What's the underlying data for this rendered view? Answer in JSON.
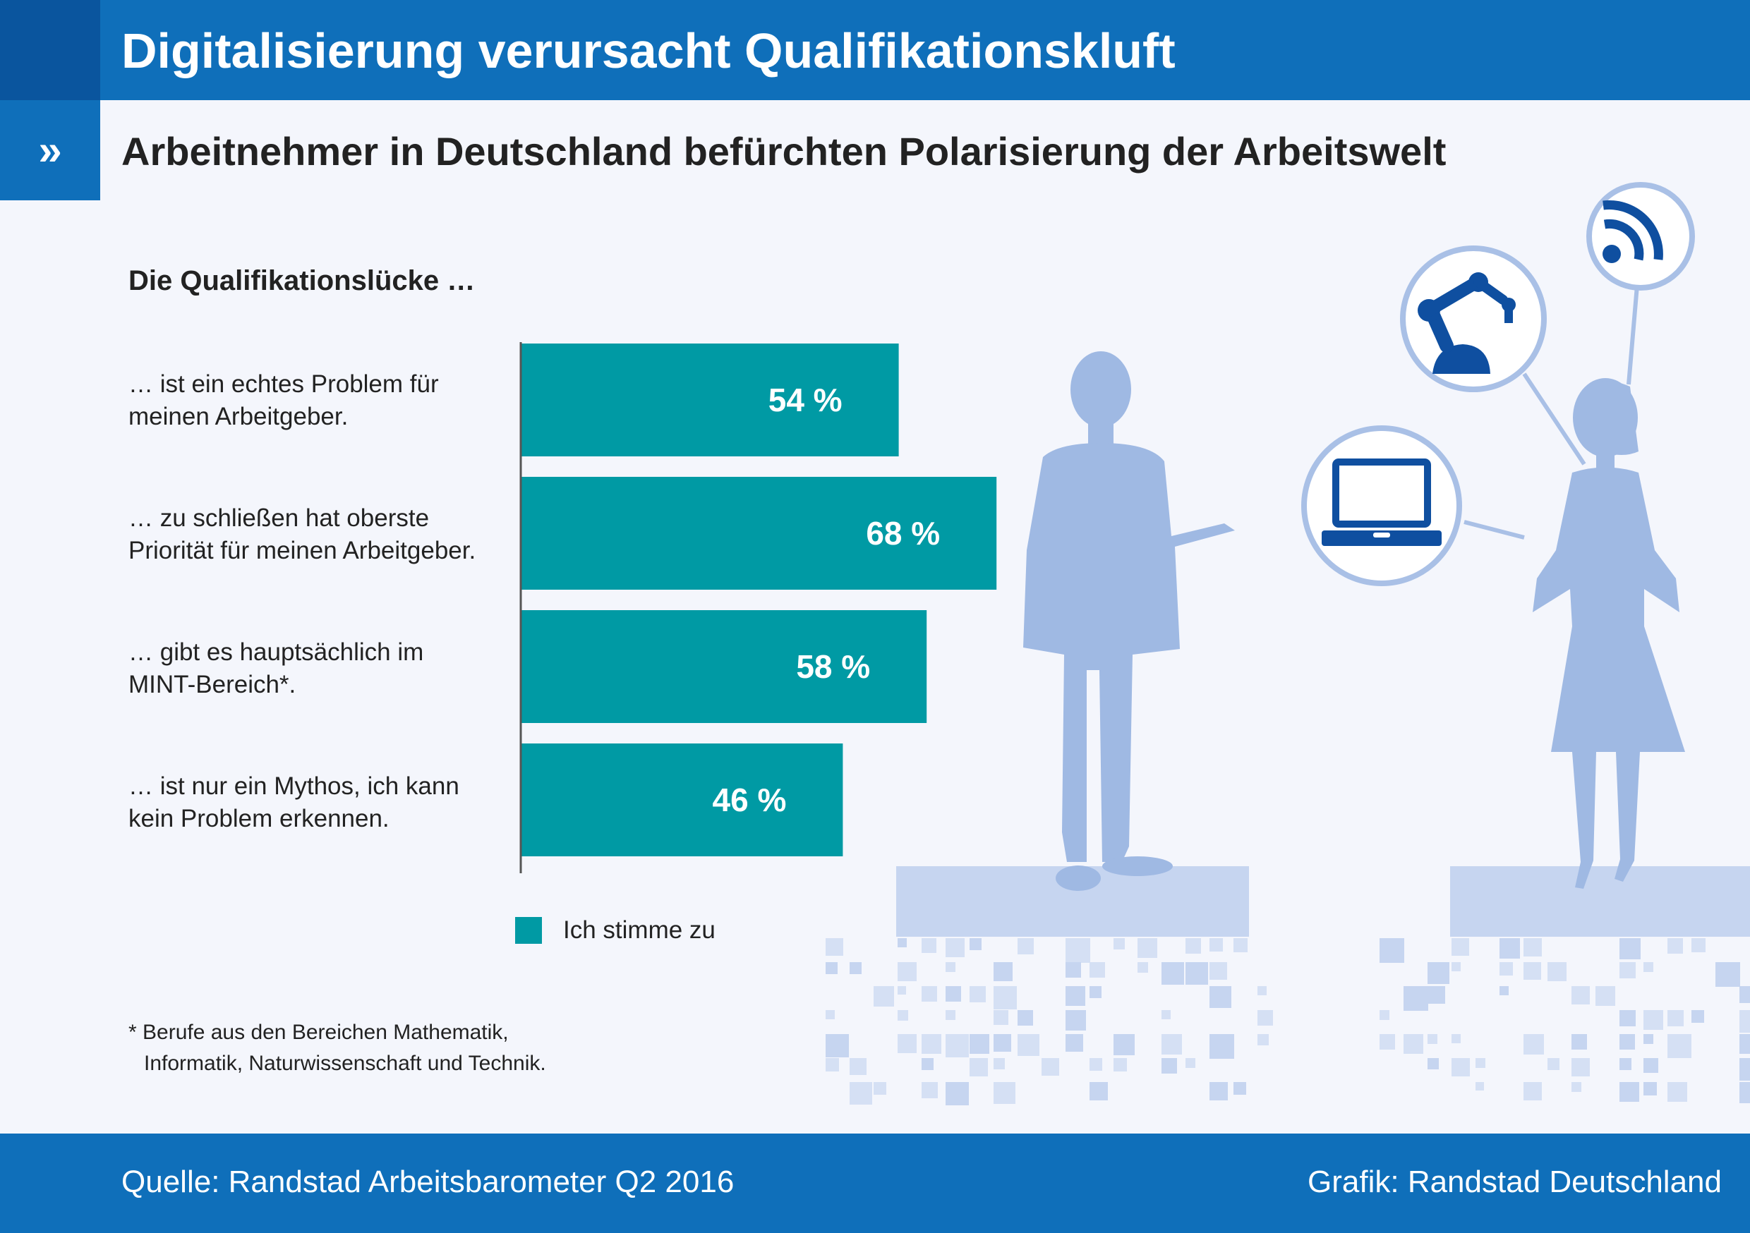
{
  "header": {
    "title": "Digitalisierung verursacht Qualifikationskluft",
    "subtitle_marker": "»",
    "subtitle": "Arbeitnehmer in Deutschland befürchten Polarisierung der Arbeitswelt"
  },
  "chart_data": {
    "type": "bar",
    "orientation": "horizontal",
    "title": "Die Qualifikationslücke …",
    "categories": [
      [
        "… ist ein echtes Problem für",
        "meinen Arbeitgeber."
      ],
      [
        "… zu schließen hat oberste",
        "Priorität für meinen Arbeitgeber."
      ],
      [
        "… gibt es hauptsächlich im",
        "MINT-Bereich*."
      ],
      [
        "… ist nur ein Mythos, ich kann",
        "kein Problem erkennen."
      ]
    ],
    "values": [
      54,
      68,
      58,
      46
    ],
    "value_labels": [
      "54 %",
      "68 %",
      "58 %",
      "46 %"
    ],
    "unit": "%",
    "series": [
      {
        "name": "Ich stimme zu",
        "color": "#009aa4"
      }
    ],
    "xlim": [
      0,
      100
    ],
    "legend": "bottom-left"
  },
  "footnote": [
    "* Berufe aus den Bereichen Mathematik,",
    "Informatik, Naturwissenschaft und Technik."
  ],
  "footer": {
    "source": "Quelle: Randstad Arbeitsbarometer Q2 2016",
    "credit": "Grafik: Randstad Deutschland"
  },
  "colors": {
    "header_blue": "#0f6fba",
    "header_dark": "#0a559e",
    "bar": "#009aa4",
    "silhouette": "#9fb9e3",
    "icon_blue": "#0f4fa0"
  },
  "icons": [
    "wifi-icon",
    "robot-arm-icon",
    "laptop-icon"
  ]
}
